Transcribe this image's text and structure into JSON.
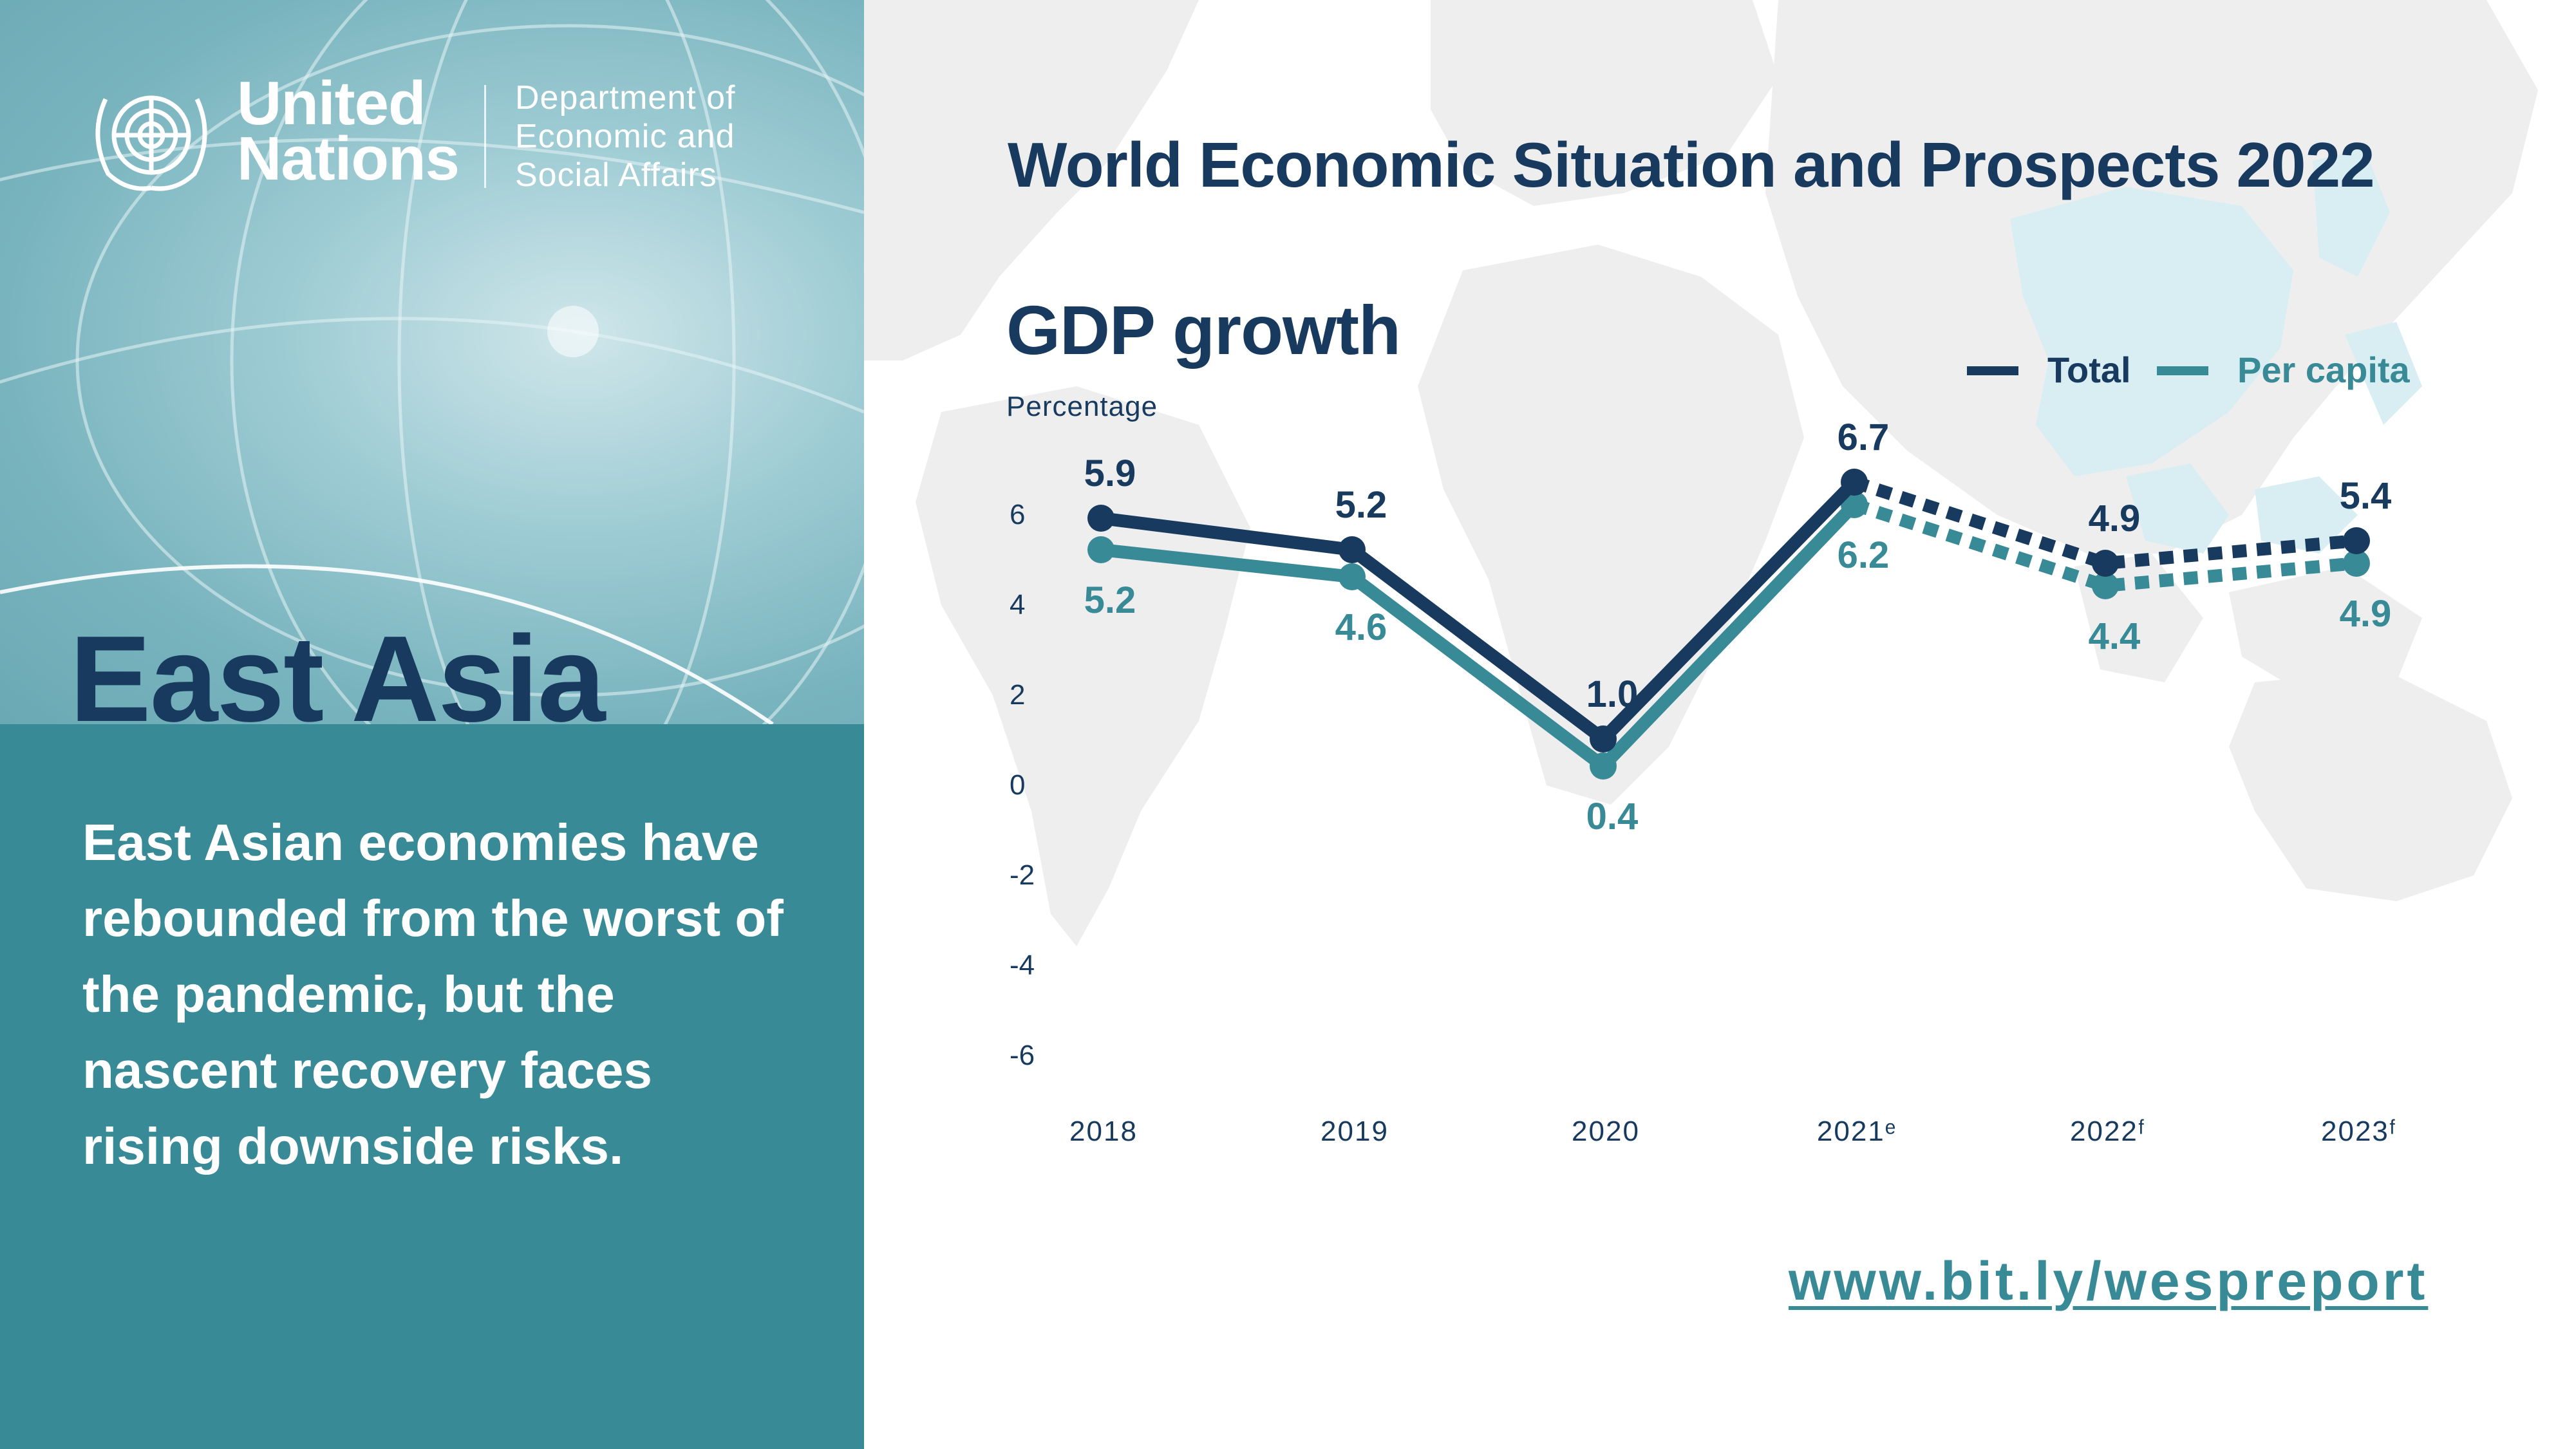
{
  "colors": {
    "total": "#173a5e",
    "per_capita": "#378a96",
    "panel_teal": "#378a96",
    "title_navy": "#173a5e"
  },
  "branding": {
    "org_line1": "United",
    "org_line2": "Nations",
    "dept_line1": "Department of",
    "dept_line2": "Economic and",
    "dept_line3": "Social Affairs",
    "logo_icon": "un-emblem-icon"
  },
  "left_panel": {
    "region": "East Asia",
    "summary": "East Asian economies have rebounded from the worst of the pandemic, but the nascent recovery faces rising downside risks."
  },
  "report_title": "World Economic Situation and Prospects 2022",
  "link": "www.bit.ly/wespreport",
  "chart_data": {
    "type": "line",
    "title": "GDP growth",
    "ylabel": "Percentage",
    "xlabel": "",
    "categories": [
      "2018",
      "2019",
      "2020",
      "2021ᵉ",
      "2022ᶠ",
      "2023ᶠ"
    ],
    "ylim": [
      -6,
      6
    ],
    "yticks": [
      "6",
      "4",
      "2",
      "0",
      "-2",
      "-4",
      "-6"
    ],
    "grid": false,
    "legend_position": "top-right",
    "dashed_from_index": 3,
    "series": [
      {
        "name": "Total",
        "values": [
          5.9,
          5.2,
          1.0,
          6.7,
          4.9,
          5.4
        ],
        "labels": [
          "5.9",
          "5.2",
          "1.0",
          "6.7",
          "4.9",
          "5.4"
        ]
      },
      {
        "name": "Per capita",
        "values": [
          5.2,
          4.6,
          0.4,
          6.2,
          4.4,
          4.9
        ],
        "labels": [
          "5.2",
          "4.6",
          "0.4",
          "6.2",
          "4.4",
          "4.9"
        ]
      }
    ]
  }
}
